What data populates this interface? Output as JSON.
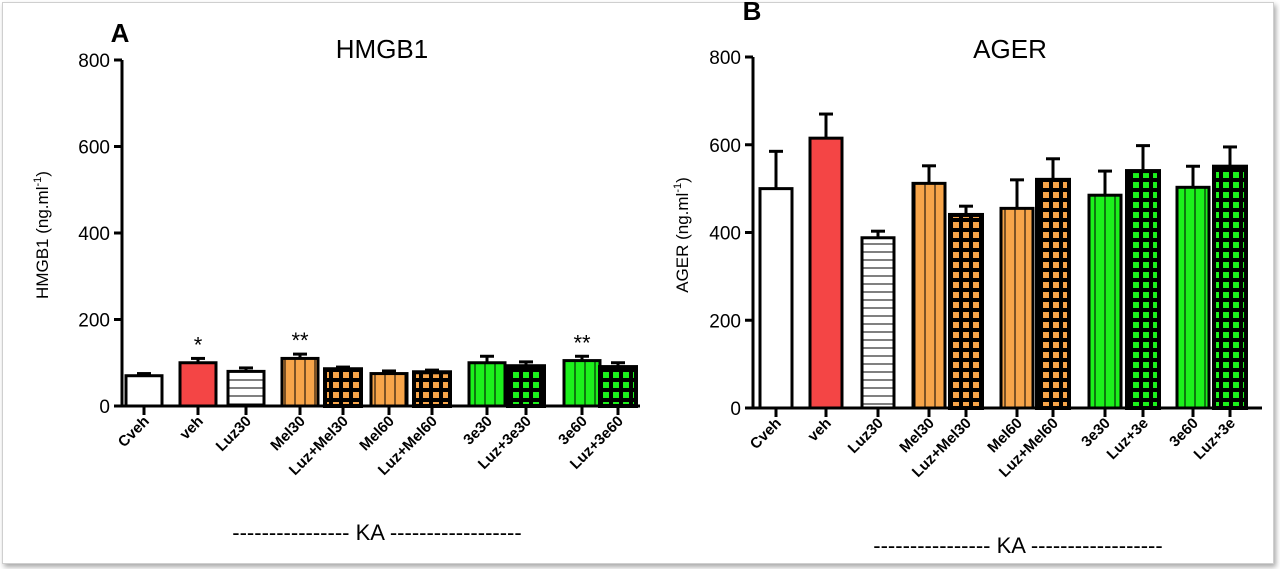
{
  "colors": {
    "white": "#ffffff",
    "red": "#f44545",
    "orange": "#f7a54a",
    "green": "#1cf01c",
    "black": "#000000"
  },
  "chart_data": [
    {
      "type": "bar",
      "panel_label": "A",
      "title": "HMGB1",
      "ylabel": "HMGB1 (ng.ml",
      "ylabel_sup": "-1",
      "ylabel_close": ")",
      "ylim": [
        0,
        800
      ],
      "yticks": [
        "0",
        "200",
        "400",
        "600",
        "800"
      ],
      "group_label": "---------------- KA ------------------",
      "categories": [
        "Cveh",
        "veh",
        "Luz30",
        "Mel30",
        "Luz+Mel30",
        "Mel60",
        "Luz+Mel60",
        "3e30",
        "Luz+3e30",
        "3e60",
        "Luz+3e60"
      ],
      "values": [
        70,
        100,
        80,
        110,
        85,
        75,
        78,
        100,
        92,
        105,
        90
      ],
      "errors": [
        5,
        10,
        8,
        10,
        5,
        6,
        5,
        15,
        10,
        10,
        10
      ],
      "fills": [
        "white",
        "red",
        "white",
        "orange",
        "orange",
        "orange",
        "orange",
        "green",
        "green",
        "green",
        "green"
      ],
      "patterns": [
        "none",
        "none",
        "horizontal",
        "vertical",
        "grid",
        "vertical",
        "grid",
        "vertical",
        "grid",
        "vertical",
        "grid"
      ],
      "annotations": [
        "",
        "*",
        "",
        "**",
        "",
        "",
        "",
        "",
        "",
        "**",
        ""
      ]
    },
    {
      "type": "bar",
      "panel_label": "B",
      "title": "AGER",
      "ylabel": "AGER (ng.ml",
      "ylabel_sup": "-1",
      "ylabel_close": ")",
      "ylim": [
        0,
        800
      ],
      "yticks": [
        "0",
        "200",
        "400",
        "600",
        "800"
      ],
      "group_label": "---------------- KA ------------------",
      "categories": [
        "Cveh",
        "veh",
        "Luz30",
        "Mel30",
        "Luz+Mel30",
        "Mel60",
        "Luz+Mel60",
        "3e30",
        "Luz+3e",
        "3e60",
        "Luz+3e"
      ],
      "values": [
        500,
        615,
        388,
        512,
        440,
        455,
        520,
        485,
        540,
        503,
        550
      ],
      "errors": [
        85,
        55,
        15,
        40,
        20,
        65,
        48,
        55,
        58,
        48,
        45
      ],
      "fills": [
        "white",
        "red",
        "white",
        "orange",
        "orange",
        "orange",
        "orange",
        "green",
        "green",
        "green",
        "green"
      ],
      "patterns": [
        "none",
        "none",
        "horizontal",
        "vertical",
        "grid",
        "vertical",
        "grid",
        "vertical",
        "grid",
        "vertical",
        "grid"
      ],
      "annotations": [
        "",
        "",
        "",
        "",
        "",
        "",
        "",
        "",
        "",
        "",
        ""
      ]
    }
  ]
}
